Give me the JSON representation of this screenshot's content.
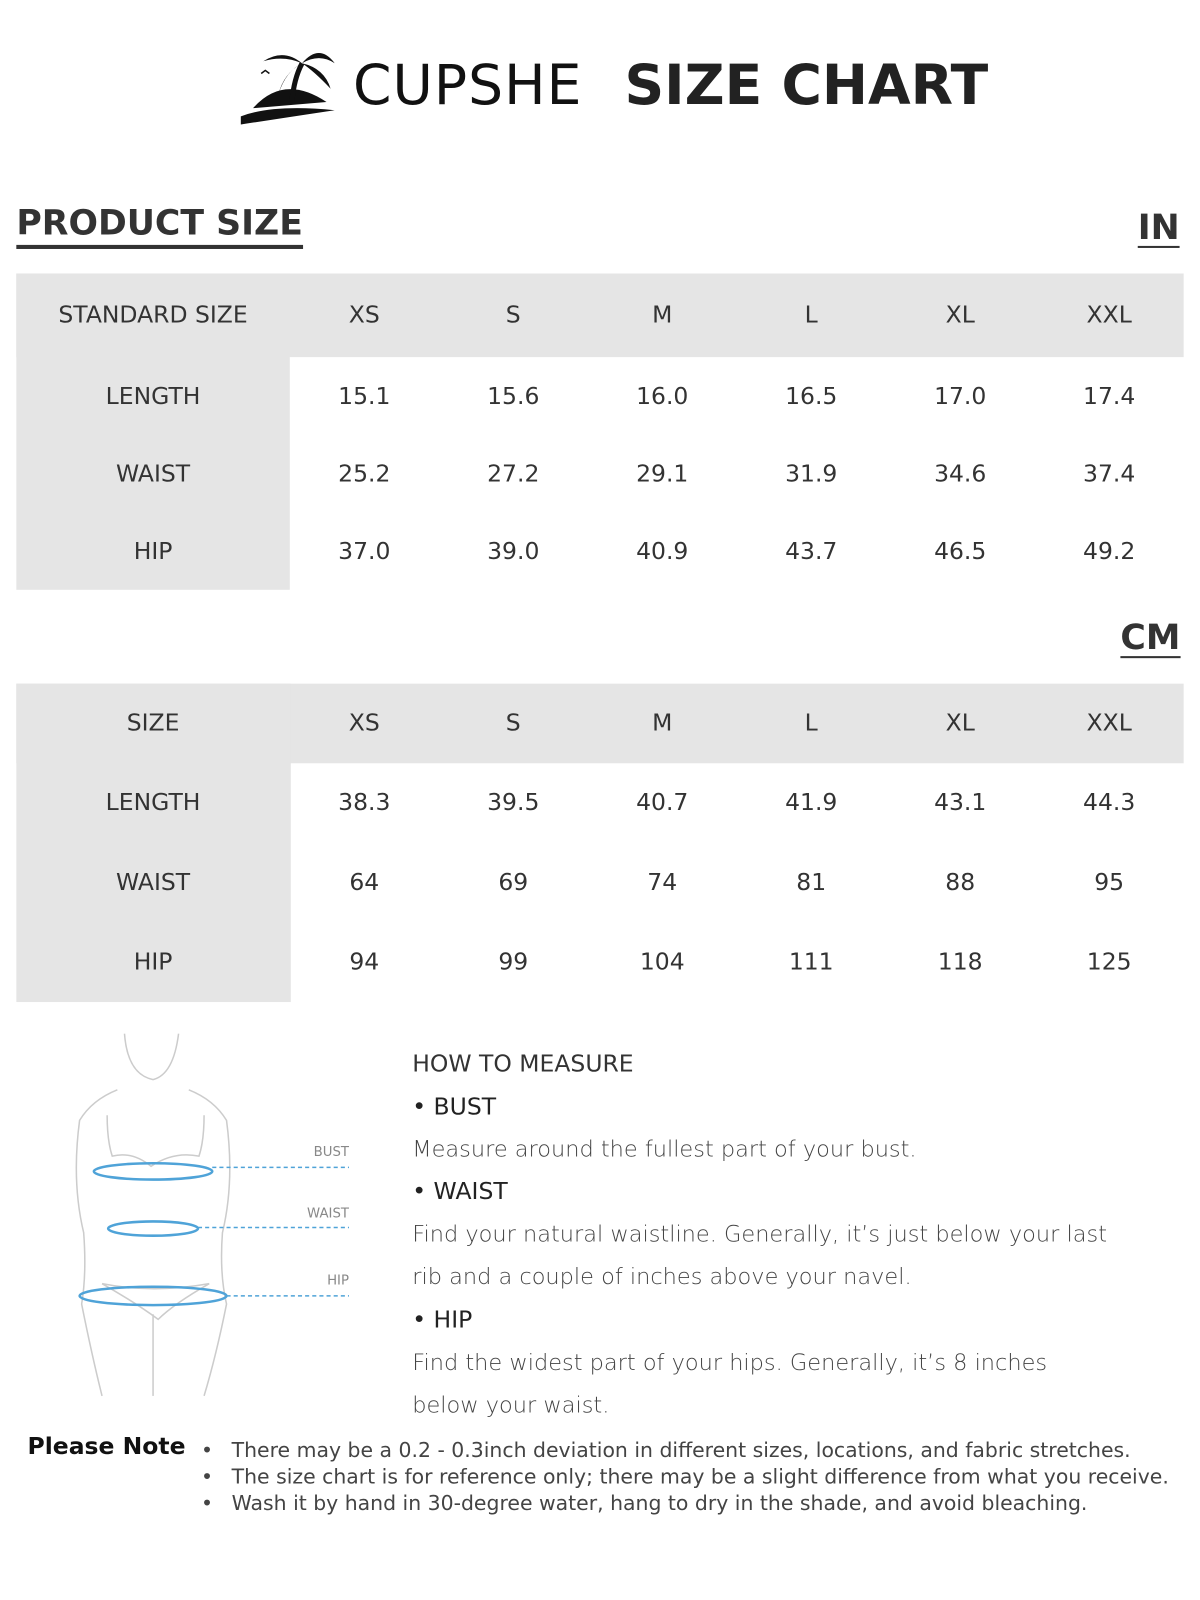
{
  "header": {
    "brand": "CUPSHE",
    "title": "SIZE CHART"
  },
  "section_title": "PRODUCT SIZE",
  "tables": [
    {
      "unit": "IN",
      "header": [
        "STANDARD SIZE",
        "XS",
        "S",
        "M",
        "L",
        "XL",
        "XXL"
      ],
      "rows": [
        [
          "LENGTH",
          "15.1",
          "15.6",
          "16.0",
          "16.5",
          "17.0",
          "17.4"
        ],
        [
          "WAIST",
          "25.2",
          "27.2",
          "29.1",
          "31.9",
          "34.6",
          "37.4"
        ],
        [
          "HIP",
          "37.0",
          "39.0",
          "40.9",
          "43.7",
          "46.5",
          "49.2"
        ]
      ]
    },
    {
      "unit": "CM",
      "header": [
        "SIZE",
        "XS",
        "S",
        "M",
        "L",
        "XL",
        "XXL"
      ],
      "rows": [
        [
          "LENGTH",
          "38.3",
          "39.5",
          "40.7",
          "41.9",
          "43.1",
          "44.3"
        ],
        [
          "WAIST",
          "64",
          "69",
          "74",
          "81",
          "88",
          "95"
        ],
        [
          "HIP",
          "94",
          "99",
          "104",
          "111",
          "118",
          "125"
        ]
      ]
    }
  ],
  "figure_labels": [
    "BUST",
    "WAIST",
    "HIP"
  ],
  "measure": {
    "title": "HOW TO MEASURE",
    "items": [
      {
        "name": "• BUST",
        "lines": [
          "Measure around the fullest part of your bust."
        ]
      },
      {
        "name": "• WAIST",
        "lines": [
          "Find your natural waistline. Generally, it’s just below your last",
          "rib and a couple of inches above your navel."
        ]
      },
      {
        "name": "• HIP",
        "lines": [
          "Find the widest part of your hips. Generally, it’s 8 inches",
          "below your waist."
        ]
      }
    ]
  },
  "note": {
    "title": "Please Note",
    "items": [
      "There may be a 0.2 - 0.3inch deviation in different sizes, locations, and fabric stretches.",
      "The size chart is for reference only; there may be a slight difference from what you receive.",
      "Wash it by hand in 30-degree water, hang to dry in the shade, and avoid bleaching."
    ]
  }
}
